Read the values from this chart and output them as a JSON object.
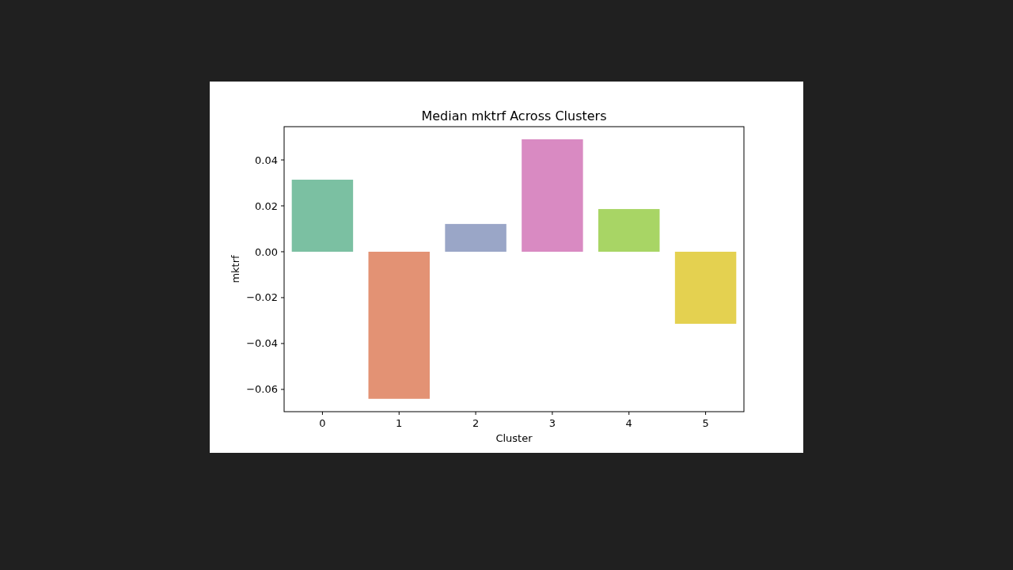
{
  "chart_data": {
    "type": "bar",
    "title": "Median mktrf Across Clusters",
    "xlabel": "Cluster",
    "ylabel": "mktrf",
    "categories": [
      "0",
      "1",
      "2",
      "3",
      "4",
      "5"
    ],
    "values": [
      0.0314,
      -0.0641,
      0.0121,
      0.049,
      0.0186,
      -0.0314
    ],
    "colors": [
      "#7bc0a2",
      "#e39274",
      "#9aa6c7",
      "#d98ac2",
      "#a8d565",
      "#e4d150"
    ],
    "ylim": [
      -0.0697,
      0.0545
    ],
    "yticks": [
      {
        "value": -0.06,
        "label": "−0.06"
      },
      {
        "value": -0.04,
        "label": "−0.04"
      },
      {
        "value": -0.02,
        "label": "−0.02"
      },
      {
        "value": 0,
        "label": "0.00"
      },
      {
        "value": 0.02,
        "label": "0.02"
      },
      {
        "value": 0.04,
        "label": "0.04"
      }
    ],
    "grid": false
  }
}
